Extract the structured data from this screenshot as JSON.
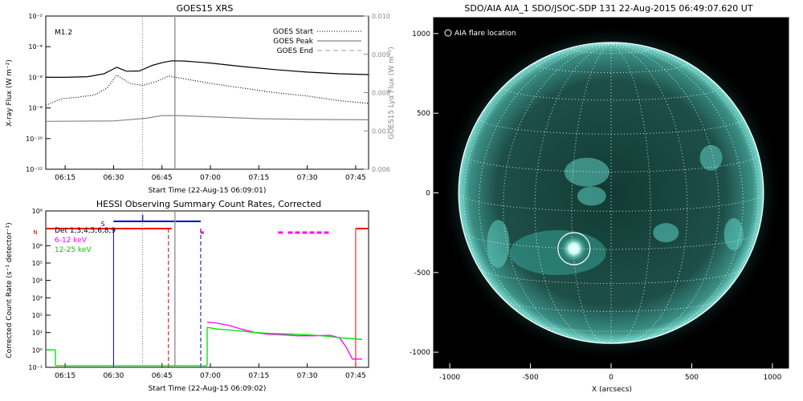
{
  "chart_data": [
    {
      "type": "line",
      "title": "GOES15 XRS",
      "xlabel": "Start Time (22-Aug-15 06:09:01)",
      "ylabel": "X-ray Flux (W m⁻²)",
      "y2label": "GOES15 Lyα Flux (W m⁻²)",
      "xlim": [
        "06:09",
        "07:49"
      ],
      "xticks": [
        "06:15",
        "06:30",
        "06:45",
        "07:00",
        "07:15",
        "07:30",
        "07:45"
      ],
      "ylim": [
        1e-12,
        0.01
      ],
      "yscale": "log",
      "yticks": [
        "10⁻¹²",
        "10⁻¹⁰",
        "10⁻⁸",
        "10⁻⁶",
        "10⁻⁴",
        "10⁻²"
      ],
      "y2lim": [
        0.006,
        0.01
      ],
      "y2ticks": [
        "0.006",
        "0.007",
        "0.008",
        "0.009",
        "0.010"
      ],
      "flare_class": "M1.2",
      "legend": [
        "GOES Start",
        "GOES Peak",
        "GOES End"
      ],
      "legend_position": "top-right",
      "markers": {
        "start": "06:39",
        "peak": "06:49"
      },
      "series": [
        {
          "name": "",
          "color": "#000000",
          "style": "solid",
          "x": [
            "06:09",
            "06:15",
            "06:22",
            "06:27",
            "06:31",
            "06:34",
            "06:38",
            "06:42",
            "06:45",
            "06:48",
            "06:52",
            "07:00",
            "07:10",
            "07:20",
            "07:30",
            "07:40",
            "07:49"
          ],
          "y": [
            1e-06,
            1e-06,
            1.1e-06,
            1.7e-06,
            4.5e-06,
            2.5e-06,
            2.6e-06,
            6e-06,
            9e-06,
            1.2e-05,
            1.15e-05,
            8.5e-06,
            5e-06,
            3.2e-06,
            2.2e-06,
            1.7e-06,
            1.5e-06
          ]
        },
        {
          "name": "",
          "color": "#000000",
          "style": "dotted",
          "x": [
            "06:09",
            "06:14",
            "06:19",
            "06:24",
            "06:28",
            "06:31",
            "06:35",
            "06:39",
            "06:43",
            "06:47",
            "06:52",
            "07:00",
            "07:10",
            "07:20",
            "07:30",
            "07:40",
            "07:49"
          ],
          "y": [
            1.5e-08,
            4e-08,
            5e-08,
            7e-08,
            2e-07,
            1.4e-06,
            4e-07,
            3e-07,
            5e-07,
            1.2e-06,
            8e-07,
            4e-07,
            2e-07,
            1e-07,
            6e-08,
            3e-08,
            2e-08
          ]
        },
        {
          "name": "",
          "color": "#888888",
          "style": "solid",
          "axis": "right",
          "x": [
            "06:09",
            "06:30",
            "06:40",
            "06:45",
            "06:50",
            "07:00",
            "07:15",
            "07:30",
            "07:49"
          ],
          "y": [
            0.00725,
            0.00726,
            0.00733,
            0.0074,
            0.0074,
            0.00737,
            0.00732,
            0.0073,
            0.00729
          ]
        }
      ]
    },
    {
      "type": "line",
      "title": "HESSI Observing Summary Count Rates, Corrected",
      "xlabel": "Start Time (22-Aug-15 06:09:02)",
      "ylabel": "Corrected Count Rate (s⁻¹ detector⁻¹)",
      "xlim": [
        "06:09",
        "07:49"
      ],
      "xticks": [
        "06:15",
        "06:30",
        "06:45",
        "07:00",
        "07:15",
        "07:30",
        "07:45"
      ],
      "ylim": [
        0.1,
        100000000
      ],
      "yscale": "log",
      "yticks": [
        "10⁻¹",
        "10⁰",
        "10¹",
        "10²",
        "10³",
        "10⁴",
        "10⁵",
        "10⁶",
        "10⁸"
      ],
      "legend": [
        "Det 1,3,4,5,6,8,9",
        "6-12 keV",
        "12-25 keV"
      ],
      "legend_position": "top-left",
      "flag_labels": [
        "S",
        "N"
      ],
      "series": [
        {
          "name": "6-12 keV",
          "color": "#ff00ff",
          "x": [
            "06:59",
            "07:02",
            "07:06",
            "07:10",
            "07:14",
            "07:18",
            "07:22",
            "07:27",
            "07:32",
            "07:37",
            "07:40",
            "07:42",
            "07:44",
            "07:47"
          ],
          "y": [
            40,
            35,
            25,
            15,
            10,
            8,
            7.5,
            6.5,
            6.5,
            7,
            5,
            1.5,
            0.3,
            0.3
          ]
        },
        {
          "name": "12-25 keV",
          "color": "#00dd00",
          "x": [
            "06:09",
            "06:12",
            "06:59",
            "07:02",
            "07:06",
            "07:10",
            "07:14",
            "07:18",
            "07:22",
            "07:27",
            "07:32",
            "07:37",
            "07:40",
            "07:44",
            "07:47"
          ],
          "y": [
            1,
            1,
            20,
            16,
            14,
            12,
            10,
            9,
            8.5,
            8,
            7,
            6,
            5,
            4.5,
            4
          ]
        }
      ]
    },
    {
      "type": "image",
      "title": "SDO/AIA AIA_1 SDO/JSOC-SDP 131 22-Aug-2015 06:49:07.620 UT",
      "legend": [
        "AIA flare location"
      ],
      "xlabel": "X (arcsecs)",
      "xlim": [
        -1100,
        1100
      ],
      "ylim": [
        -1100,
        1100
      ],
      "xticks": [
        "-1000",
        "-500",
        "0",
        "500",
        "1000"
      ],
      "yticks": [
        "-1000",
        "-500",
        "0",
        "500",
        "1000"
      ],
      "flare_location": {
        "x": -230,
        "y": -350
      }
    }
  ]
}
